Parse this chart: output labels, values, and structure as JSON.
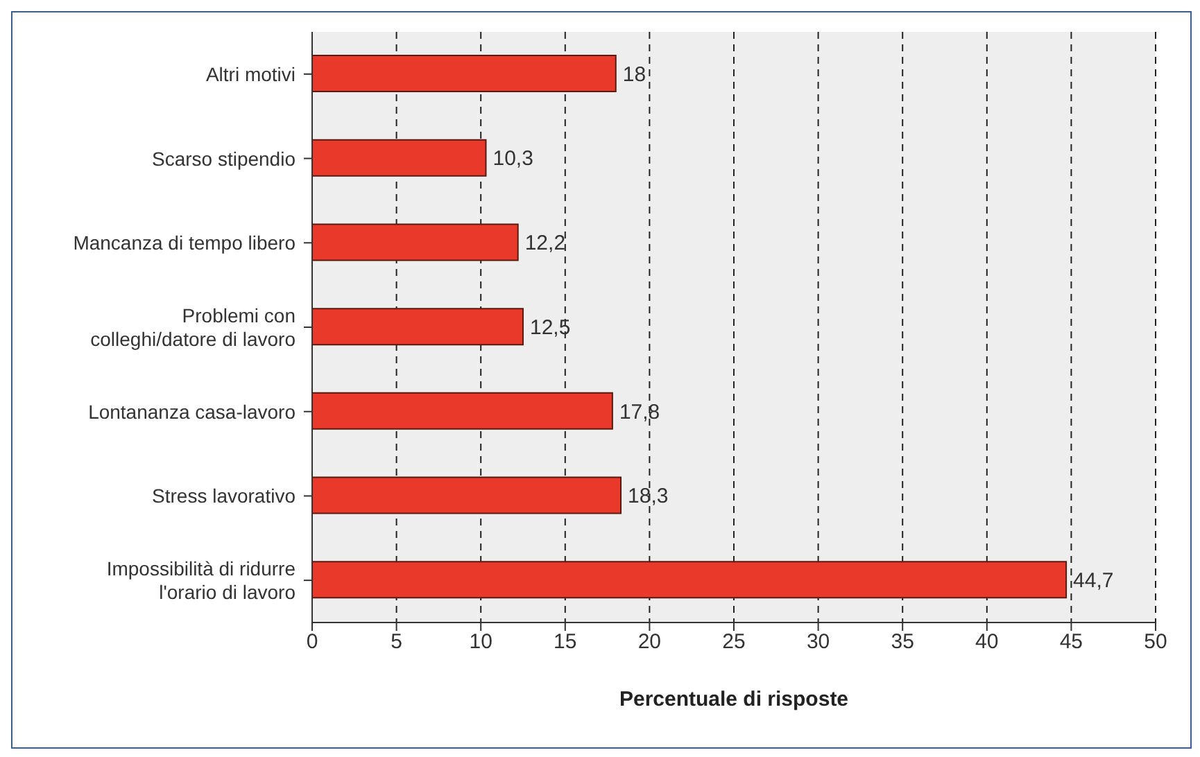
{
  "chart_data": {
    "type": "bar",
    "orientation": "horizontal",
    "xlabel": "Percentuale di risposte",
    "categories": [
      "Altri motivi",
      "Scarso stipendio",
      "Mancanza di tempo libero",
      "Problemi con colleghi/datore di lavoro",
      "Lontananza casa-lavoro",
      "Stress lavorativo",
      "Impossibilità di ridurre l'orario di lavoro"
    ],
    "values": [
      18,
      10.3,
      12.2,
      12.5,
      17.8,
      18.3,
      44.7
    ],
    "value_labels": [
      "18",
      "10,3",
      "12,2",
      "12,5",
      "17,8",
      "18,3",
      "44,7"
    ],
    "color": "#e8392a",
    "xlim": [
      0,
      50
    ],
    "xticks": [
      0,
      5,
      10,
      15,
      20,
      25,
      30,
      35,
      40,
      45,
      50
    ],
    "grid": "x",
    "line_style": "dashed"
  }
}
